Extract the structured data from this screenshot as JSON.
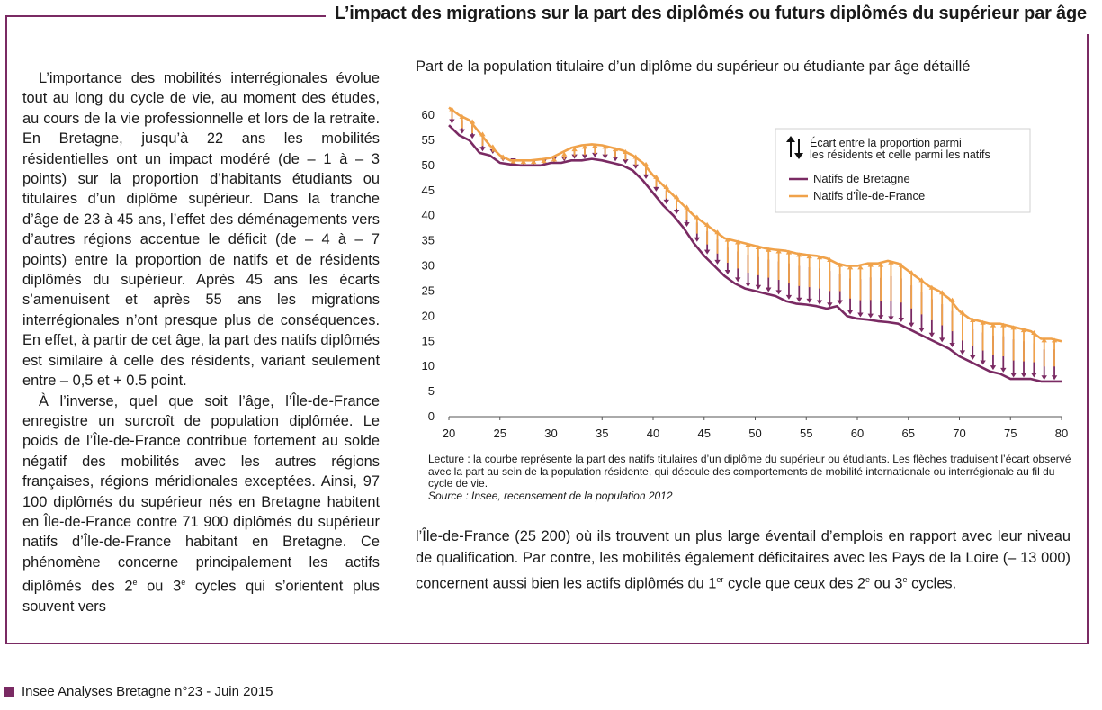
{
  "box_title": "L’impact des migrations sur la part des diplômés ou futurs diplômés du supérieur par âge",
  "left_text": {
    "p1": "L’importance des mobilités interrégionales évolue tout au long du cycle de vie, au moment des études, au cours de la vie professionnelle et lors de la retraite. En Bretagne, jusqu’à 22 ans les mobilités résidentielles ont un impact modéré (de – 1 à – 3 points) sur la proportion d’habitants étudiants ou titulaires d’un diplôme supérieur. Dans la tranche d’âge de 23 à 45 ans, l’effet des déménagements vers d’autres régions accentue le déficit (de – 4 à – 7 points) entre la proportion de natifs et de résidents diplômés du supérieur. Après 45 ans les écarts s’amenuisent et après 55 ans les migrations interrégionales n’ont presque plus de conséquences. En effet, à partir de cet âge, la part des natifs diplômés est similaire à celle des résidents, variant seulement entre – 0,5 et + 0.5 point.",
    "p2_a": "À l’inverse, quel que soit l’âge, l’Île-de-France enregistre un surcroît de population diplômée. Le poids de l’Île-de-France contribue fortement au solde négatif des mobilités avec les autres régions françaises, régions méridionales exceptées. Ainsi, 97 100 diplômés du supérieur nés en Bretagne habitent en Île-de-France contre 71 900 diplômés du supérieur natifs d’Île-de-France habitant en Bretagne. Ce phénomène concerne principalement les actifs diplômés des 2",
    "p2_sup1": "e",
    "p2_b": " ou 3",
    "p2_sup2": "e",
    "p2_c": " cycles qui s’orientent plus souvent vers"
  },
  "chart_title": "Part de la population titulaire d’un diplôme du supérieur ou étudiante par âge détaillé",
  "chart_note": "Lecture : la courbe représente la part des natifs titulaires d’un diplôme du supérieur ou étudiants. Les flèches traduisent l’écart observé avec la part au sein de la population résidente, qui découle des comportements de mobilité internationale ou interrégionale au fil du cycle de vie.",
  "chart_source": "Source : Insee, recensement de la population 2012",
  "right_text": {
    "a": "l’Île-de-France (25 200) où ils trouvent un plus large éventail d’emplois en rapport avec leur niveau de qualification. Par contre, les mobilités également déficitaires avec les Pays de la Loire (– 13 000) concernent aussi bien les actifs diplômés du 1",
    "sup1": "er",
    "b": " cycle que ceux des 2",
    "sup2": "e",
    "c": " ou 3",
    "sup3": "e",
    "d": " cycles."
  },
  "footer": "Insee Analyses Bretagne n°23 - Juin 2015",
  "colors": {
    "frame": "#7a2a63",
    "bretagne": "#7a2a63",
    "idf": "#f0a24a",
    "axis": "#555555"
  },
  "chart_data": {
    "type": "line",
    "xlim": [
      20,
      80
    ],
    "ylim": [
      0,
      60
    ],
    "x_ticks": [
      20,
      25,
      30,
      35,
      40,
      45,
      50,
      55,
      60,
      65,
      70,
      75,
      80
    ],
    "y_ticks": [
      0,
      5,
      10,
      15,
      20,
      25,
      30,
      35,
      40,
      45,
      50,
      55,
      60
    ],
    "grid": false,
    "legend_position": "top-right",
    "legend_arrow_label_line1": "Écart entre la proportion parmi",
    "legend_arrow_label_line2": "les résidents et celle parmi les natifs",
    "x": [
      20,
      21,
      22,
      23,
      24,
      25,
      26,
      27,
      28,
      29,
      30,
      31,
      32,
      33,
      34,
      35,
      36,
      37,
      38,
      39,
      40,
      41,
      42,
      43,
      44,
      45,
      46,
      47,
      48,
      49,
      50,
      51,
      52,
      53,
      54,
      55,
      56,
      57,
      58,
      59,
      60,
      61,
      62,
      63,
      64,
      65,
      66,
      67,
      68,
      69,
      70,
      71,
      72,
      73,
      74,
      75,
      76,
      77,
      78,
      79,
      80
    ],
    "series": [
      {
        "name": "Natifs de Bretagne",
        "values": [
          58,
          56,
          55,
          52.5,
          52,
          50.5,
          50.2,
          50,
          50,
          50,
          50.5,
          50.5,
          51,
          51,
          51.3,
          51,
          50.5,
          50,
          49,
          47,
          44.5,
          42,
          40,
          37.5,
          34.5,
          32,
          30,
          28,
          26.5,
          25.5,
          25,
          24.5,
          24,
          23,
          22.5,
          22.3,
          22,
          21.5,
          22,
          20,
          19.5,
          19.3,
          19,
          18.8,
          18.5,
          17.5,
          16.5,
          15.5,
          14.5,
          13.5,
          12,
          11,
          10,
          9,
          8.5,
          7.5,
          7.5,
          7.5,
          7,
          7,
          7
        ]
      },
      {
        "name": "Natifs d’Île-de-France",
        "values": [
          61.5,
          60,
          59,
          56.5,
          54,
          52,
          51,
          51,
          51,
          51.2,
          51.5,
          52.5,
          53.5,
          54,
          54.2,
          54,
          53.5,
          53,
          52,
          50.5,
          48,
          46,
          44,
          42,
          40,
          38.5,
          37,
          35.5,
          35,
          34.5,
          34,
          33.5,
          33.2,
          33,
          32.5,
          32.2,
          32,
          31.5,
          30.5,
          30,
          30,
          30.5,
          30.5,
          31,
          30.5,
          29,
          27.5,
          26,
          25,
          23.5,
          21,
          19.5,
          19,
          18.5,
          18.5,
          18,
          17.5,
          17,
          15.5,
          15.5,
          15
        ]
      }
    ]
  }
}
